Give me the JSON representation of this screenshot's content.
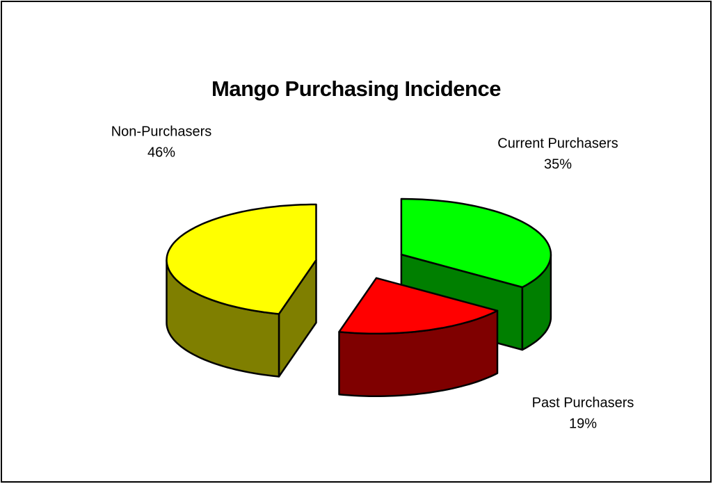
{
  "chart_data": {
    "type": "pie",
    "title": "Mango Purchasing Incidence",
    "categories": [
      "Current Purchasers",
      "Past Purchasers",
      "Non-Purchasers"
    ],
    "values": [
      35,
      19,
      46
    ],
    "value_labels": [
      "35%",
      "19%",
      "46%"
    ],
    "colors": [
      "#00ff00",
      "#ff0000",
      "#ffff00"
    ]
  }
}
